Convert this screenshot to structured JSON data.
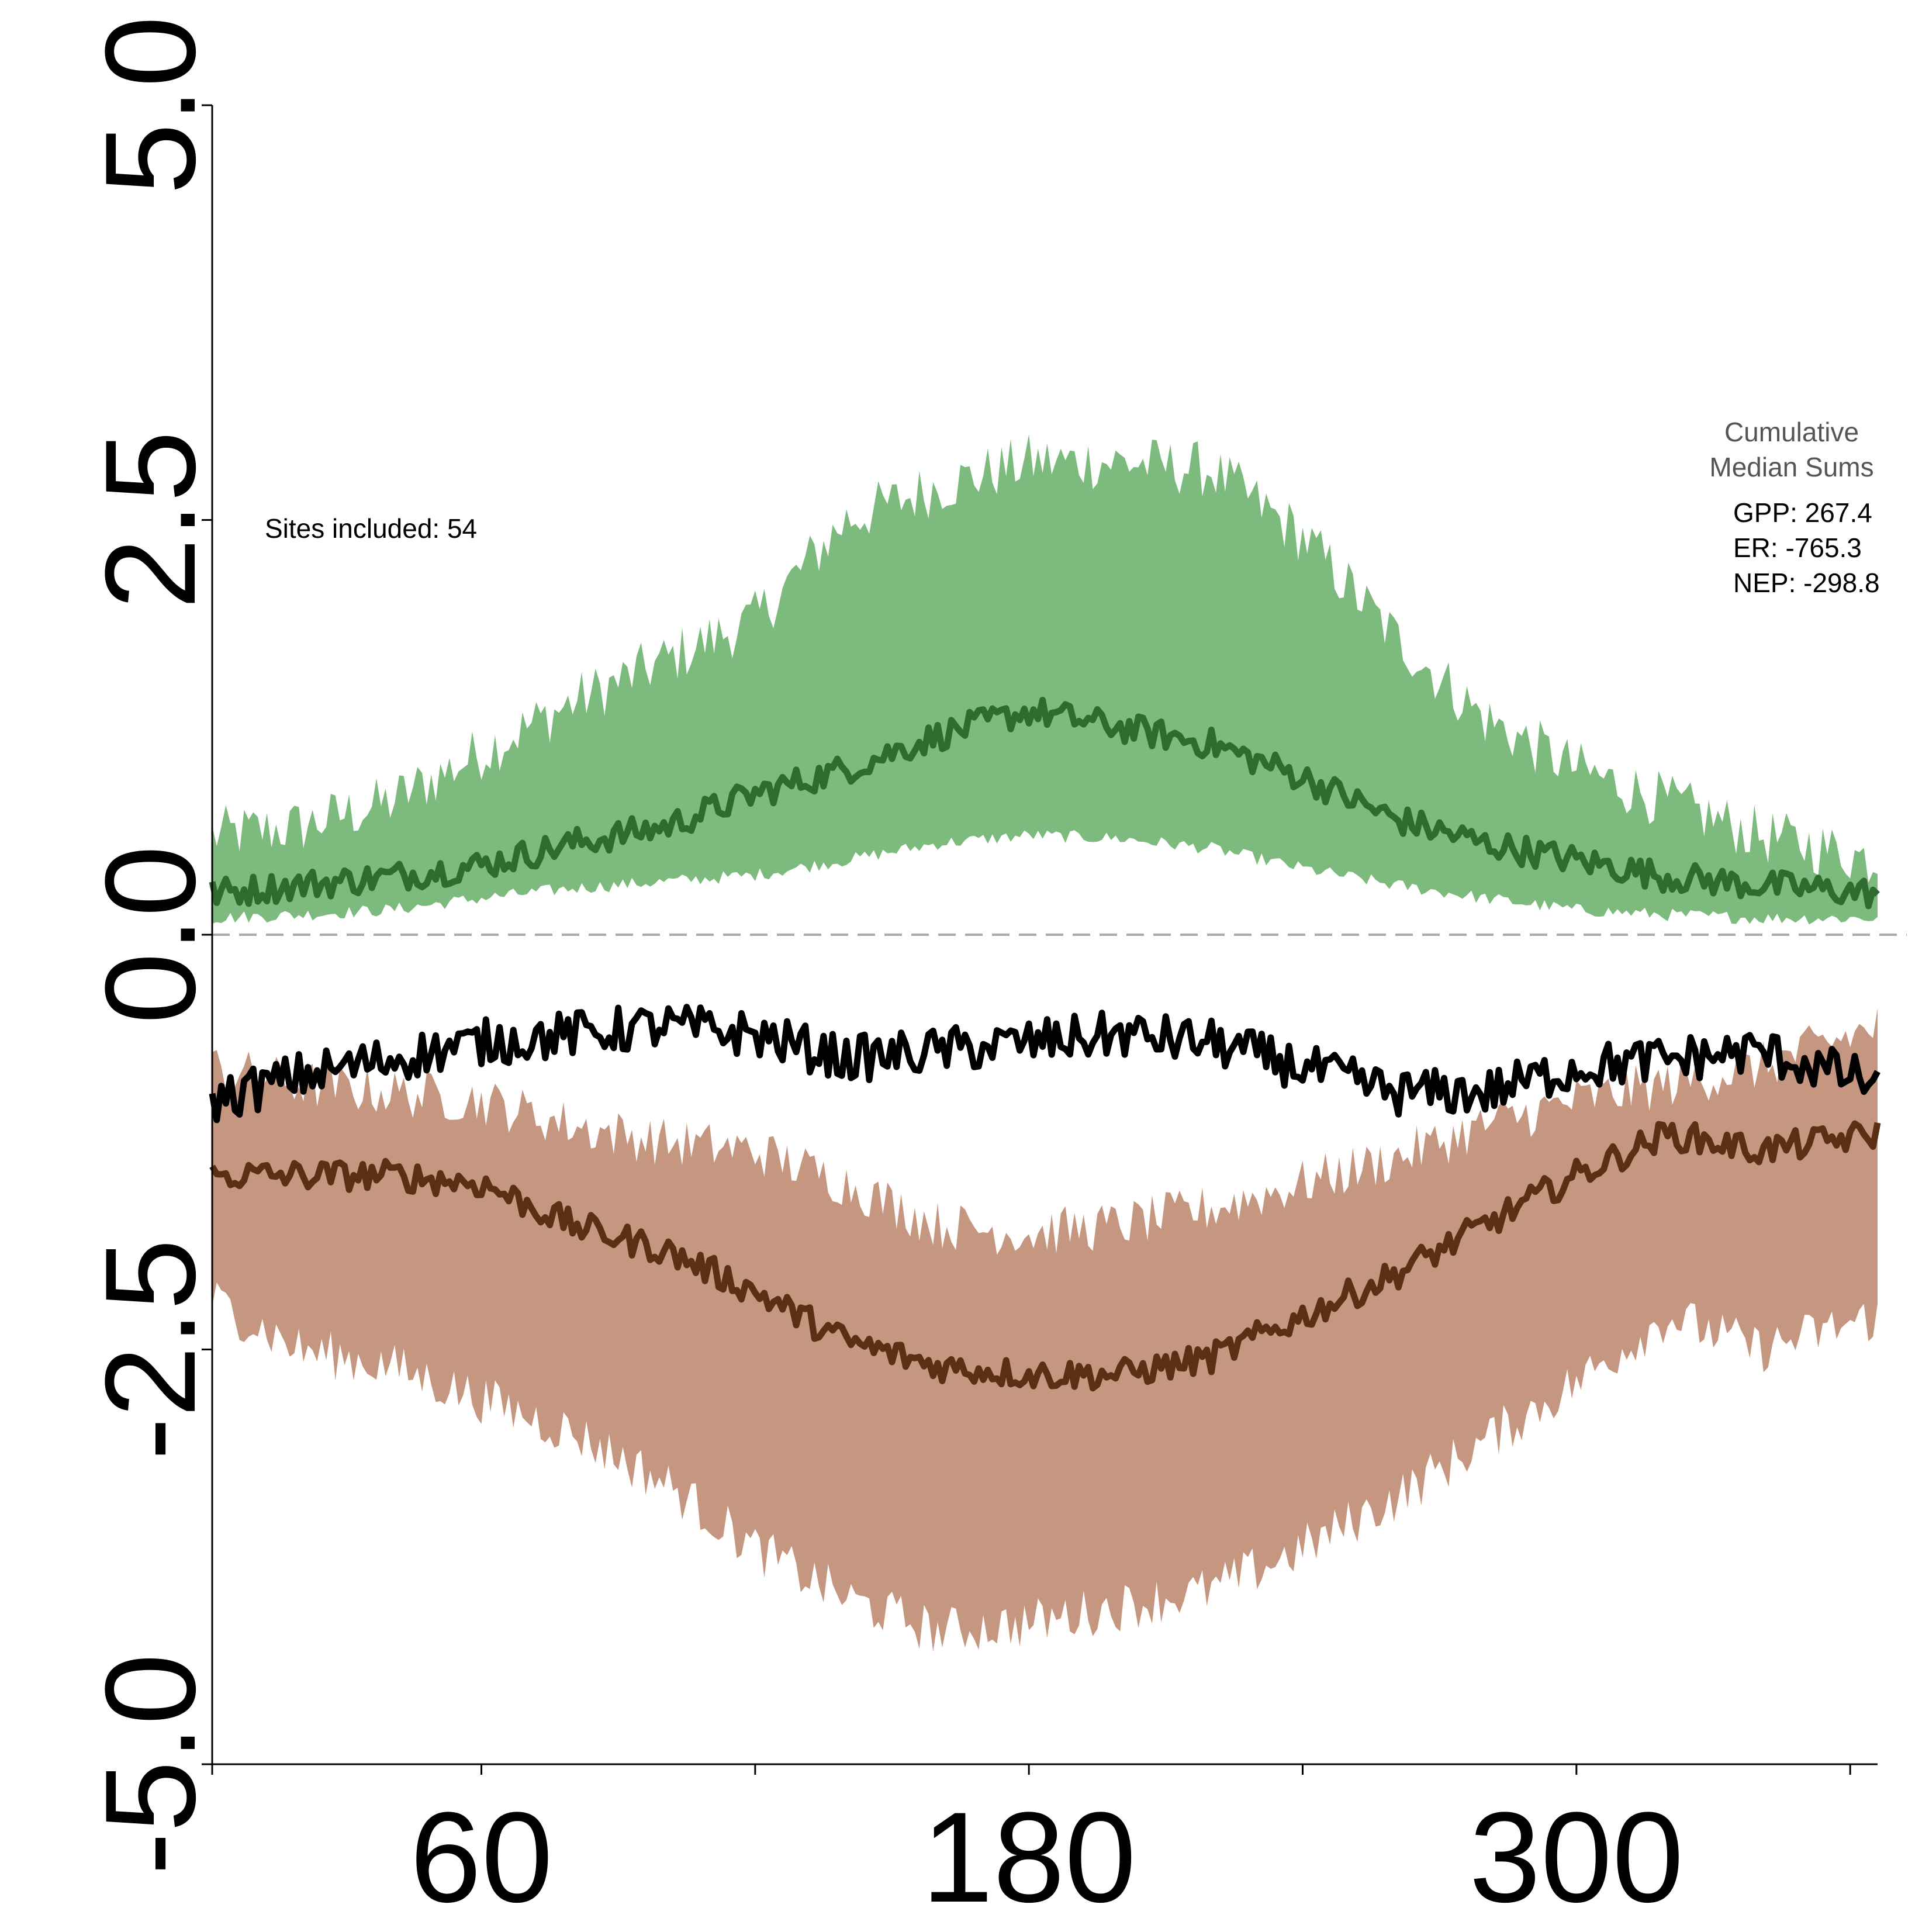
{
  "colors": {
    "gpp_band": "#7dba7d",
    "gpp_line": "#2e6b2e",
    "er_band": "#c59680",
    "er_line": "#5a2f14",
    "nep_line": "#000000",
    "zero_line": "#aaaaaa",
    "axis": "#000000"
  },
  "annotations": {
    "sites": "Sites included: 54",
    "cumulative_title_1": "Cumulative",
    "cumulative_title_2": "Median Sums",
    "gpp": "GPP: 267.4",
    "er": "ER: -765.3",
    "nep": "NEP: -298.8"
  },
  "chart_data": {
    "type": "area",
    "title": "",
    "xlabel": "",
    "ylabel": "",
    "xlim": [
      1,
      366
    ],
    "ylim": [
      -5,
      5
    ],
    "grid": false,
    "legend": "none",
    "x_ticks": [
      1,
      60,
      120,
      180,
      240,
      300,
      360
    ],
    "x_tick_labels": [
      "",
      "60",
      "",
      "180",
      "",
      "300",
      ""
    ],
    "y_ticks": [
      -5,
      -2.5,
      0,
      2.5,
      5
    ],
    "y_tick_labels": [
      "-5.0",
      "-2.5",
      "0.0",
      "2.5",
      "5.0"
    ],
    "zero_line": {
      "y": 0,
      "style": "dashed"
    },
    "x": [
      1,
      20,
      40,
      60,
      80,
      100,
      120,
      140,
      160,
      180,
      200,
      220,
      240,
      260,
      280,
      300,
      320,
      340,
      366
    ],
    "series": [
      {
        "key": "gpp",
        "kind": "band_with_median",
        "median": [
          0.25,
          0.3,
          0.35,
          0.42,
          0.55,
          0.65,
          0.85,
          1.0,
          1.2,
          1.35,
          1.25,
          1.15,
          0.95,
          0.7,
          0.55,
          0.45,
          0.35,
          0.3,
          0.25
        ],
        "lower": [
          0.1,
          0.12,
          0.15,
          0.22,
          0.28,
          0.32,
          0.36,
          0.45,
          0.55,
          0.6,
          0.58,
          0.52,
          0.4,
          0.3,
          0.22,
          0.15,
          0.12,
          0.1,
          0.1
        ],
        "upper": [
          0.6,
          0.65,
          0.8,
          1.1,
          1.4,
          1.65,
          1.9,
          2.5,
          2.7,
          2.85,
          2.85,
          2.8,
          2.4,
          1.8,
          1.3,
          1.0,
          0.8,
          0.6,
          0.45
        ]
      },
      {
        "key": "er",
        "kind": "band_with_median",
        "median": [
          -1.45,
          -1.45,
          -1.45,
          -1.5,
          -1.75,
          -1.9,
          -2.15,
          -2.45,
          -2.6,
          -2.65,
          -2.65,
          -2.55,
          -2.3,
          -2.05,
          -1.75,
          -1.45,
          -1.2,
          -1.3,
          -1.2
        ],
        "lower": [
          -2.2,
          -2.5,
          -2.6,
          -2.8,
          -3.0,
          -3.3,
          -3.7,
          -4.0,
          -4.2,
          -4.15,
          -4.05,
          -3.95,
          -3.7,
          -3.4,
          -3.05,
          -2.7,
          -2.3,
          -2.5,
          -2.3
        ],
        "upper": [
          -0.8,
          -0.9,
          -0.95,
          -1.0,
          -1.15,
          -1.25,
          -1.3,
          -1.5,
          -1.75,
          -1.8,
          -1.75,
          -1.65,
          -1.5,
          -1.35,
          -1.15,
          -1.0,
          -0.9,
          -0.8,
          -0.55
        ]
      },
      {
        "key": "nep",
        "kind": "line",
        "values": [
          -1.0,
          -0.85,
          -0.75,
          -0.65,
          -0.6,
          -0.55,
          -0.6,
          -0.75,
          -0.7,
          -0.65,
          -0.6,
          -0.65,
          -0.8,
          -0.95,
          -0.95,
          -0.8,
          -0.75,
          -0.7,
          -0.9
        ]
      }
    ]
  }
}
